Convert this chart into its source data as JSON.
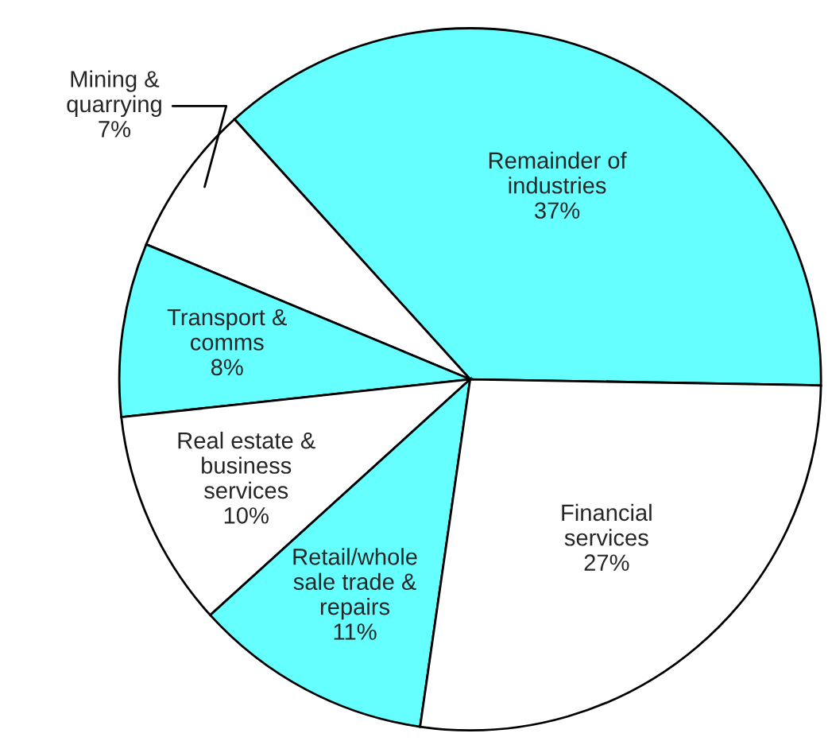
{
  "chart_data": {
    "type": "pie",
    "categories": [
      "Remainder of\nindustries",
      "Mining &\nquarrying",
      "Transport &\ncomms",
      "Real estate &\nbusiness\nservices",
      "Retail/whole\nsale trade &\nrepairs",
      "Financial\nservices"
    ],
    "values": [
      37,
      7,
      8,
      10,
      11,
      27
    ],
    "value_labels": [
      "37%",
      "7%",
      "8%",
      "10%",
      "11%",
      "27%"
    ],
    "colors": [
      "#66ffff",
      "#ffffff",
      "#66ffff",
      "#ffffff",
      "#66ffff",
      "#ffffff"
    ]
  }
}
